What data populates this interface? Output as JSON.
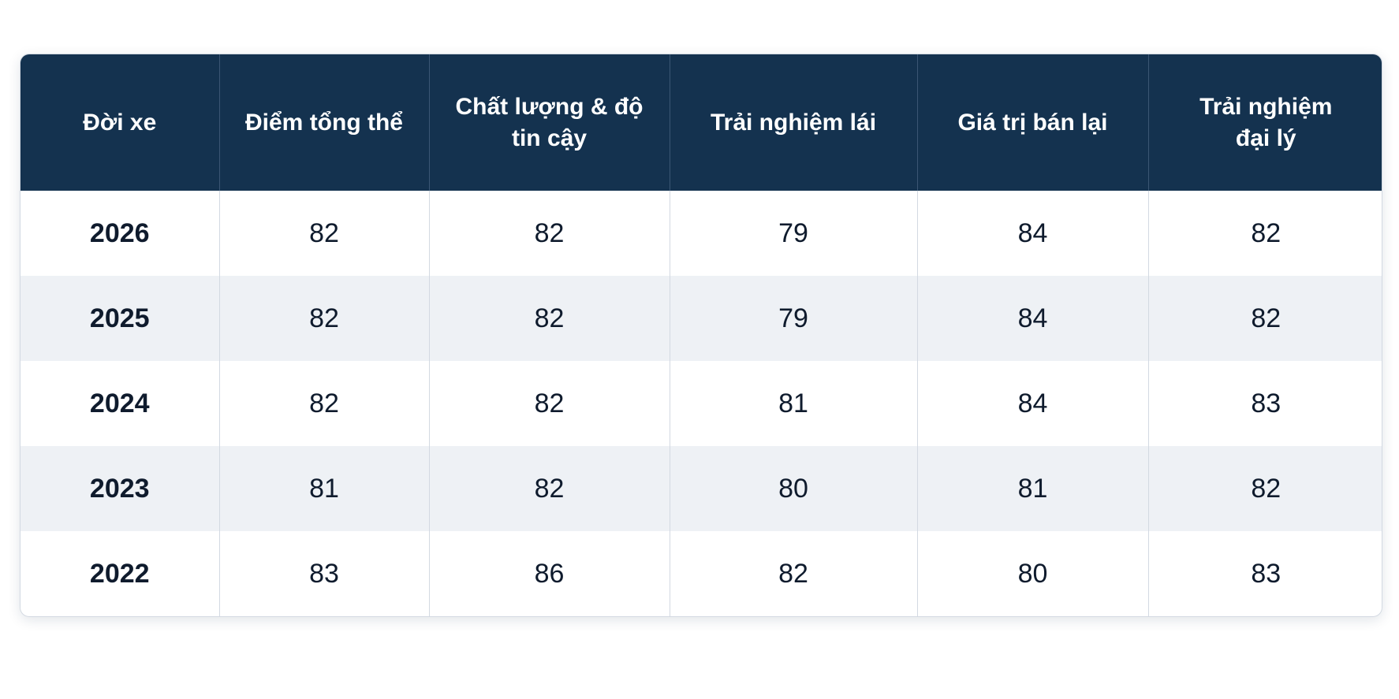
{
  "table": {
    "columns": [
      "Đời xe",
      "Điểm tổng thể",
      "Chất lượng & độ tin cậy",
      "Trải nghiệm lái",
      "Giá trị bán lại",
      "Trải nghiệm đại lý"
    ],
    "rows": [
      [
        "2026",
        "82",
        "82",
        "79",
        "84",
        "82"
      ],
      [
        "2025",
        "82",
        "82",
        "79",
        "84",
        "82"
      ],
      [
        "2024",
        "82",
        "82",
        "81",
        "84",
        "83"
      ],
      [
        "2023",
        "81",
        "82",
        "80",
        "81",
        "82"
      ],
      [
        "2022",
        "83",
        "86",
        "82",
        "80",
        "83"
      ]
    ]
  }
}
